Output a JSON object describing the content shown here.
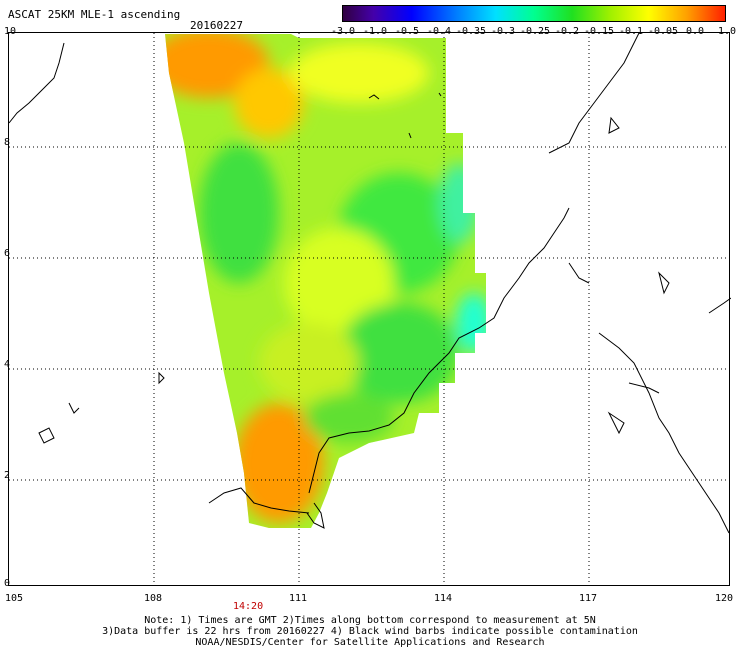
{
  "title": "ASCAT 25KM MLE-1 ascending",
  "date": "20160227",
  "colorbar": {
    "labels": [
      "-3.0",
      "-1.0",
      "-0.5",
      "-0.4",
      "-0.35",
      "-0.3",
      "-0.25",
      "-0.2",
      "-0.15",
      "-0.1",
      "-0.05",
      "0.0",
      "1.0"
    ]
  },
  "axes": {
    "x_labels": [
      "105",
      "108",
      "111",
      "114",
      "117",
      "120"
    ],
    "y_labels": [
      "10",
      "8",
      "6",
      "4",
      "2",
      "0"
    ]
  },
  "time_label": "14:20",
  "notes": [
    "Note: 1) Times are GMT 2)Times along bottom correspond to measurement at 5N",
    "3)Data buffer is 22 hrs from 20160227 4) Black wind barbs indicate possible contamination",
    "NOAA/NESDIS/Center for Satellite Applications and Research"
  ],
  "colors": {
    "orange": "#ff9a00",
    "yellow": "#f0ff00",
    "green": "#40f040",
    "cyan": "#00ffd0"
  }
}
